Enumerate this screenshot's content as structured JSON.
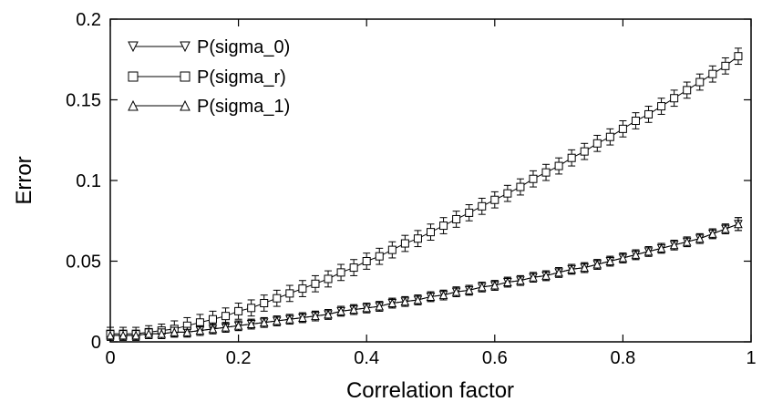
{
  "chart_data": {
    "type": "line",
    "title": "",
    "xlabel": "Correlation factor",
    "ylabel": "Error",
    "xlim": [
      0,
      1
    ],
    "ylim": [
      0,
      0.2
    ],
    "x_ticks": [
      "0",
      "0.2",
      "0.4",
      "0.6",
      "0.8",
      "1"
    ],
    "y_ticks": [
      "0",
      "0.05",
      "0.1",
      "0.15",
      "0.2"
    ],
    "grid": false,
    "legend_position": "top-left",
    "x": [
      0.0,
      0.02,
      0.04,
      0.06,
      0.08,
      0.1,
      0.12,
      0.14,
      0.16,
      0.18,
      0.2,
      0.22,
      0.24,
      0.26,
      0.28,
      0.3,
      0.32,
      0.34,
      0.36,
      0.38,
      0.4,
      0.42,
      0.44,
      0.46,
      0.48,
      0.5,
      0.52,
      0.54,
      0.56,
      0.58,
      0.6,
      0.62,
      0.64,
      0.66,
      0.68,
      0.7,
      0.72,
      0.74,
      0.76,
      0.78,
      0.8,
      0.82,
      0.84,
      0.86,
      0.88,
      0.9,
      0.92,
      0.94,
      0.96,
      0.98
    ],
    "series": [
      {
        "name": "P(sigma_0)",
        "marker": "triangle-down",
        "values": [
          0.004,
          0.004,
          0.004,
          0.005,
          0.005,
          0.006,
          0.006,
          0.007,
          0.008,
          0.009,
          0.01,
          0.011,
          0.012,
          0.013,
          0.014,
          0.015,
          0.016,
          0.017,
          0.019,
          0.02,
          0.021,
          0.022,
          0.024,
          0.025,
          0.026,
          0.028,
          0.029,
          0.031,
          0.032,
          0.034,
          0.035,
          0.037,
          0.038,
          0.04,
          0.041,
          0.043,
          0.045,
          0.046,
          0.048,
          0.05,
          0.052,
          0.054,
          0.056,
          0.058,
          0.06,
          0.062,
          0.064,
          0.067,
          0.07,
          0.073
        ],
        "error": [
          0.003,
          0.003,
          0.003,
          0.003,
          0.003,
          0.003,
          0.003,
          0.003,
          0.003,
          0.003,
          0.003,
          0.003,
          0.003,
          0.003,
          0.003,
          0.003,
          0.003,
          0.003,
          0.003,
          0.003,
          0.003,
          0.003,
          0.003,
          0.003,
          0.003,
          0.003,
          0.003,
          0.003,
          0.003,
          0.003,
          0.003,
          0.003,
          0.003,
          0.003,
          0.003,
          0.003,
          0.003,
          0.003,
          0.003,
          0.003,
          0.003,
          0.003,
          0.003,
          0.003,
          0.003,
          0.003,
          0.003,
          0.003,
          0.003,
          0.004
        ]
      },
      {
        "name": "P(sigma_r)",
        "marker": "square",
        "values": [
          0.005,
          0.005,
          0.005,
          0.006,
          0.007,
          0.008,
          0.01,
          0.012,
          0.014,
          0.016,
          0.019,
          0.021,
          0.024,
          0.027,
          0.03,
          0.033,
          0.036,
          0.039,
          0.043,
          0.046,
          0.05,
          0.053,
          0.057,
          0.061,
          0.064,
          0.068,
          0.072,
          0.076,
          0.08,
          0.084,
          0.088,
          0.092,
          0.096,
          0.101,
          0.105,
          0.109,
          0.114,
          0.118,
          0.123,
          0.127,
          0.132,
          0.137,
          0.141,
          0.146,
          0.151,
          0.156,
          0.161,
          0.166,
          0.171,
          0.177
        ],
        "error": [
          0.004,
          0.004,
          0.004,
          0.004,
          0.004,
          0.005,
          0.005,
          0.005,
          0.005,
          0.005,
          0.005,
          0.005,
          0.005,
          0.005,
          0.005,
          0.005,
          0.005,
          0.005,
          0.005,
          0.005,
          0.005,
          0.005,
          0.005,
          0.005,
          0.005,
          0.005,
          0.005,
          0.005,
          0.005,
          0.005,
          0.005,
          0.005,
          0.005,
          0.005,
          0.005,
          0.005,
          0.005,
          0.005,
          0.005,
          0.005,
          0.005,
          0.005,
          0.005,
          0.005,
          0.005,
          0.005,
          0.005,
          0.005,
          0.005,
          0.005
        ]
      },
      {
        "name": "P(sigma_1)",
        "marker": "triangle-up",
        "values": [
          0.004,
          0.004,
          0.004,
          0.005,
          0.005,
          0.006,
          0.006,
          0.007,
          0.008,
          0.009,
          0.01,
          0.011,
          0.012,
          0.013,
          0.014,
          0.015,
          0.016,
          0.017,
          0.019,
          0.02,
          0.021,
          0.022,
          0.024,
          0.025,
          0.026,
          0.028,
          0.029,
          0.031,
          0.032,
          0.034,
          0.035,
          0.037,
          0.038,
          0.04,
          0.041,
          0.043,
          0.045,
          0.046,
          0.048,
          0.05,
          0.052,
          0.054,
          0.056,
          0.058,
          0.06,
          0.062,
          0.064,
          0.067,
          0.07,
          0.073
        ],
        "error": [
          0.003,
          0.003,
          0.003,
          0.003,
          0.003,
          0.003,
          0.003,
          0.003,
          0.003,
          0.003,
          0.003,
          0.003,
          0.003,
          0.003,
          0.003,
          0.003,
          0.003,
          0.003,
          0.003,
          0.003,
          0.003,
          0.003,
          0.003,
          0.003,
          0.003,
          0.003,
          0.003,
          0.003,
          0.003,
          0.003,
          0.003,
          0.003,
          0.003,
          0.003,
          0.003,
          0.003,
          0.003,
          0.003,
          0.003,
          0.003,
          0.003,
          0.003,
          0.003,
          0.003,
          0.003,
          0.003,
          0.003,
          0.003,
          0.003,
          0.004
        ]
      }
    ]
  }
}
